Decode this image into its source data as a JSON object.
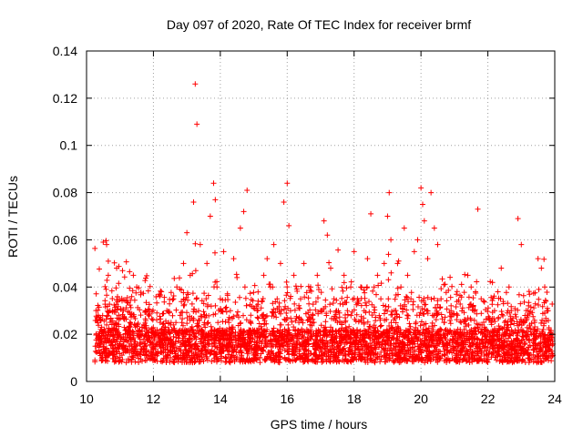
{
  "chart_data": {
    "type": "scatter",
    "title": "Day 097 of 2020, Rate Of TEC Index for receiver brmf",
    "xlabel": "GPS time / hours",
    "ylabel": "ROTI / TECUs",
    "xlim": [
      10,
      24
    ],
    "ylim": [
      0,
      0.14
    ],
    "x_ticks": [
      "10",
      "12",
      "14",
      "16",
      "18",
      "20",
      "22",
      "24"
    ],
    "y_ticks": [
      "0",
      "0.02",
      "0.04",
      "0.06",
      "0.08",
      "0.1",
      "0.12",
      "0.14"
    ],
    "grid": true,
    "legend": "none",
    "marker": "plus",
    "color": "#ff0000",
    "series": [
      {
        "x": [
          10.3,
          10.35,
          10.42,
          10.5,
          10.55,
          10.6,
          10.65,
          10.7,
          10.8,
          10.9,
          11.0,
          11.1,
          11.2,
          11.3,
          11.4,
          11.5,
          11.6,
          11.7,
          11.8,
          11.9,
          12.0,
          12.1,
          12.2,
          12.3,
          12.4,
          12.5,
          12.6,
          12.7,
          12.8,
          12.9,
          13.0,
          13.1,
          13.2,
          13.25,
          13.3,
          13.35,
          13.4,
          13.5,
          13.6,
          13.7,
          13.8,
          13.85,
          13.9,
          14.0,
          14.1,
          14.2,
          14.3,
          14.4,
          14.5,
          14.6,
          14.7,
          14.8,
          14.9,
          15.0,
          15.1,
          15.2,
          15.3,
          15.4,
          15.5,
          15.6,
          15.7,
          15.8,
          15.9,
          16.0,
          16.05,
          16.1,
          16.2,
          16.3,
          16.4,
          16.5,
          16.6,
          16.7,
          16.8,
          16.9,
          17.0,
          17.1,
          17.2,
          17.3,
          17.4,
          17.5,
          17.6,
          17.7,
          17.8,
          17.9,
          18.0,
          18.1,
          18.2,
          18.3,
          18.4,
          18.5,
          18.6,
          18.7,
          18.8,
          18.9,
          19.0,
          19.05,
          19.1,
          19.2,
          19.3,
          19.4,
          19.5,
          19.6,
          19.7,
          19.8,
          19.9,
          20.0,
          20.05,
          20.1,
          20.2,
          20.3,
          20.4,
          20.5,
          20.6,
          20.7,
          20.8,
          20.9,
          21.0,
          21.1,
          21.2,
          21.3,
          21.4,
          21.5,
          21.6,
          21.7,
          21.8,
          21.9,
          22.0,
          22.1,
          22.2,
          22.3,
          22.4,
          22.5,
          22.6,
          22.7,
          22.8,
          22.9,
          23.0,
          23.1,
          23.2,
          23.3,
          23.4,
          23.5,
          23.6,
          23.7,
          23.8,
          23.9
        ],
        "y": [
          0.015,
          0.028,
          0.022,
          0.059,
          0.012,
          0.058,
          0.045,
          0.03,
          0.02,
          0.048,
          0.016,
          0.03,
          0.013,
          0.025,
          0.045,
          0.04,
          0.018,
          0.012,
          0.011,
          0.01,
          0.014,
          0.012,
          0.025,
          0.02,
          0.03,
          0.018,
          0.035,
          0.04,
          0.028,
          0.05,
          0.063,
          0.045,
          0.076,
          0.126,
          0.109,
          0.03,
          0.058,
          0.02,
          0.05,
          0.07,
          0.084,
          0.077,
          0.04,
          0.035,
          0.055,
          0.018,
          0.03,
          0.052,
          0.044,
          0.065,
          0.072,
          0.081,
          0.025,
          0.012,
          0.03,
          0.02,
          0.045,
          0.052,
          0.04,
          0.058,
          0.035,
          0.05,
          0.076,
          0.084,
          0.066,
          0.03,
          0.045,
          0.02,
          0.035,
          0.05,
          0.018,
          0.04,
          0.025,
          0.045,
          0.03,
          0.068,
          0.062,
          0.048,
          0.035,
          0.025,
          0.02,
          0.045,
          0.03,
          0.04,
          0.055,
          0.035,
          0.04,
          0.03,
          0.052,
          0.071,
          0.04,
          0.045,
          0.035,
          0.05,
          0.07,
          0.08,
          0.06,
          0.03,
          0.05,
          0.04,
          0.065,
          0.045,
          0.035,
          0.055,
          0.06,
          0.082,
          0.075,
          0.068,
          0.052,
          0.08,
          0.065,
          0.058,
          0.035,
          0.025,
          0.02,
          0.03,
          0.02,
          0.015,
          0.025,
          0.02,
          0.045,
          0.04,
          0.03,
          0.073,
          0.035,
          0.02,
          0.02,
          0.025,
          0.03,
          0.038,
          0.048,
          0.025,
          0.03,
          0.03,
          0.015,
          0.069,
          0.058,
          0.025,
          0.03,
          0.02,
          0.025,
          0.052,
          0.048,
          0.04,
          0.03,
          0.02
        ]
      }
    ]
  }
}
